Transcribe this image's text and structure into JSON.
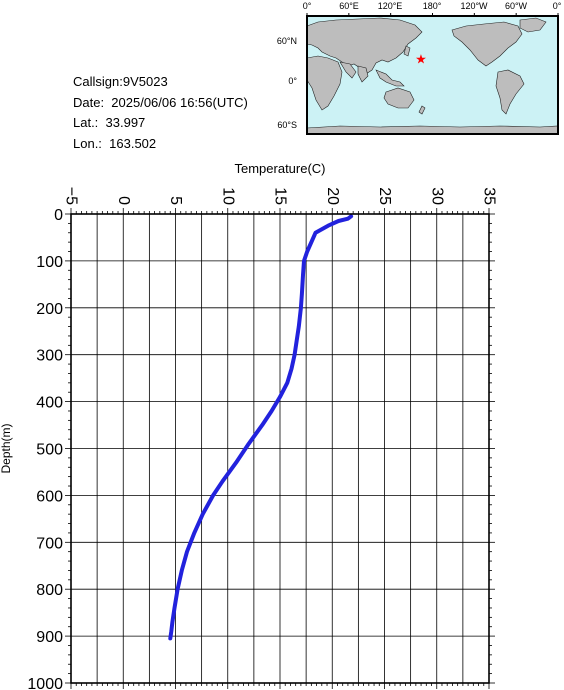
{
  "info": {
    "callsign": "Callsign:9V5023",
    "date": "Date:  2025/06/06 16:56(UTC)",
    "lat": "Lat.:  33.997",
    "lon": "Lon.:  163.502"
  },
  "map": {
    "top_labels": [
      "0°",
      "60°E",
      "120°E",
      "180°",
      "120°W",
      "60°W",
      "0°"
    ],
    "side_labels": [
      "60°N",
      "0°",
      "60°S"
    ],
    "ocean_color": "#ccf2f5",
    "land_color": "#bdbdbd",
    "marker_color": "#ff0000",
    "marker": {
      "lat": 33.997,
      "lon": 163.502
    }
  },
  "chart_data": {
    "type": "line",
    "title": "",
    "xlabel": "Temperature(C)",
    "ylabel": "Depth(m)",
    "xlim": [
      -5,
      35
    ],
    "ylim": [
      0,
      1000
    ],
    "y_inverted": true,
    "x_axis_position": "top",
    "grid": true,
    "xticks": [
      "−5",
      "0",
      "5",
      "10",
      "15",
      "20",
      "25",
      "30",
      "35"
    ],
    "yticks": [
      "0",
      "100",
      "200",
      "300",
      "400",
      "500",
      "600",
      "700",
      "800",
      "900",
      "1000"
    ],
    "line_color": "#2222dd",
    "series": [
      {
        "x": [
          21.8,
          21.5,
          20.6,
          19.6,
          18.4,
          18.0,
          17.6,
          17.3,
          17.2,
          17.1,
          17.0,
          16.8,
          16.6,
          16.4,
          16.1,
          15.7,
          15.0,
          14.2,
          13.3,
          12.0,
          10.8,
          9.5,
          8.6,
          7.6,
          6.8,
          6.1,
          5.6,
          5.2,
          4.9,
          4.7,
          4.6,
          4.5
        ],
        "y": [
          5,
          10,
          15,
          25,
          40,
          60,
          80,
          100,
          130,
          170,
          200,
          240,
          270,
          300,
          330,
          360,
          390,
          420,
          450,
          490,
          530,
          570,
          600,
          640,
          680,
          720,
          760,
          800,
          840,
          870,
          890,
          905
        ]
      }
    ]
  }
}
